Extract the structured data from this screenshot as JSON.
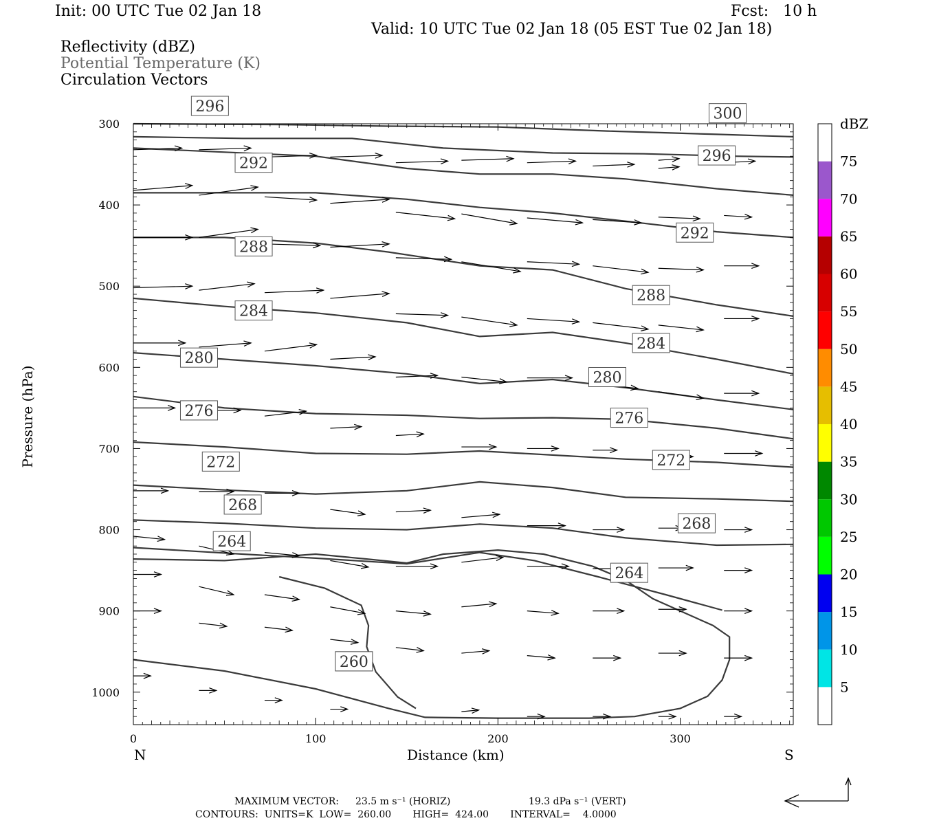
{
  "header": {
    "init": "Init: 00 UTC Tue 02 Jan 18",
    "fcst": "Fcst:   10 h",
    "valid": "Valid: 10 UTC Tue 02 Jan 18 (05 EST Tue 02 Jan 18)"
  },
  "legend_lines": {
    "reflectivity": "Reflectivity (dBZ)",
    "potential_temperature": "Potential Temperature (K)",
    "circulation": "Circulation Vectors"
  },
  "footer": {
    "max_vector_label": "MAXIMUM VECTOR:",
    "max_vector_horiz": "23.5 m s⁻¹ (HORIZ)",
    "max_vector_vert": "19.3 dPa s⁻¹ (VERT)",
    "contours": "CONTOURS:  UNITS=K  LOW=  260.00       HIGH=  424.00       INTERVAL=    4.0000"
  },
  "chart_data": {
    "type": "cross-section contour",
    "xlabel": "Distance (km)",
    "ylabel": "Pressure (hPa)",
    "xlim": [
      0,
      362
    ],
    "ylim": [
      1040,
      300
    ],
    "x_ticks": [
      "0",
      "100",
      "200",
      "300"
    ],
    "y_ticks": [
      "300",
      "400",
      "500",
      "600",
      "700",
      "800",
      "900",
      "1000"
    ],
    "x_end_left": "N",
    "x_end_right": "S",
    "colorbar": {
      "unit": "dBZ",
      "levels": [
        "5",
        "10",
        "15",
        "20",
        "25",
        "30",
        "35",
        "40",
        "45",
        "50",
        "55",
        "60",
        "65",
        "70",
        "75"
      ],
      "colors": [
        "#ffffff",
        "#00e5e5",
        "#0095e8",
        "#0000f0",
        "#00ff00",
        "#00c800",
        "#008800",
        "#ffff00",
        "#e6be00",
        "#ff8c00",
        "#ff0000",
        "#d70000",
        "#b50000",
        "#ff00ff",
        "#9b57cc",
        "#ffffff"
      ]
    },
    "theta_contours": [
      {
        "label": "260",
        "label_at": [
          121,
          962
        ],
        "points": [
          [
            0,
            960
          ],
          [
            50,
            974
          ],
          [
            100,
            996
          ],
          [
            140,
            1020
          ],
          [
            160,
            1031
          ],
          [
            200,
            1032
          ],
          [
            250,
            1032
          ],
          [
            275,
            1030
          ],
          [
            300,
            1020
          ],
          [
            315,
            1005
          ],
          [
            323,
            985
          ],
          [
            327,
            960
          ],
          [
            327,
            932
          ],
          [
            318,
            918
          ],
          [
            302,
            902
          ],
          [
            285,
            885
          ],
          [
            270,
            862
          ],
          [
            252,
            845
          ],
          [
            225,
            830
          ],
          [
            200,
            825
          ],
          [
            170,
            830
          ],
          [
            150,
            841
          ],
          [
            128,
            836
          ],
          [
            100,
            830
          ],
          [
            50,
            838
          ],
          [
            0,
            836
          ]
        ]
      },
      {
        "label": "260",
        "label_at": [
          121,
          962
        ],
        "points": [
          [
            80,
            858
          ],
          [
            105,
            872
          ],
          [
            125,
            893
          ],
          [
            129,
            918
          ],
          [
            128,
            944
          ],
          [
            133,
            975
          ],
          [
            145,
            1006
          ],
          [
            155,
            1020
          ]
        ]
      },
      {
        "label": "264",
        "label_at": [
          54,
          814
        ],
        "points": [
          [
            0,
            822
          ],
          [
            60,
            830
          ],
          [
            100,
            835
          ],
          [
            150,
            842
          ],
          [
            190,
            828
          ],
          [
            220,
            838
          ],
          [
            255,
            858
          ],
          [
            292,
            880
          ],
          [
            323,
            899
          ]
        ]
      },
      {
        "label": "264",
        "label_at": [
          272,
          853
        ],
        "points": []
      },
      {
        "label": "268",
        "label_at": [
          60,
          769
        ],
        "points": [
          [
            0,
            788
          ],
          [
            50,
            792
          ],
          [
            100,
            798
          ],
          [
            150,
            800
          ],
          [
            190,
            793
          ],
          [
            230,
            798
          ],
          [
            270,
            810
          ],
          [
            320,
            819
          ],
          [
            362,
            818
          ]
        ]
      },
      {
        "label": "268",
        "label_at": [
          309,
          792
        ],
        "points": []
      },
      {
        "label": "272",
        "label_at": [
          48,
          716
        ],
        "points": [
          [
            0,
            745
          ],
          [
            50,
            751
          ],
          [
            100,
            756
          ],
          [
            150,
            752
          ],
          [
            190,
            741
          ],
          [
            230,
            748
          ],
          [
            270,
            760
          ],
          [
            320,
            762
          ],
          [
            362,
            765
          ]
        ]
      },
      {
        "label": "272",
        "label_at": [
          295,
          714
        ],
        "points": []
      },
      {
        "label": "276",
        "label_at": [
          36,
          653
        ],
        "points": [
          [
            0,
            692
          ],
          [
            50,
            698
          ],
          [
            100,
            706
          ],
          [
            150,
            707
          ],
          [
            190,
            703
          ],
          [
            230,
            708
          ],
          [
            270,
            713
          ],
          [
            320,
            717
          ],
          [
            362,
            723
          ]
        ]
      },
      {
        "label": "276",
        "label_at": [
          272,
          662
        ],
        "points": []
      },
      {
        "label": "280",
        "label_at": [
          36,
          588
        ],
        "points": [
          [
            0,
            636
          ],
          [
            50,
            650
          ],
          [
            100,
            657
          ],
          [
            150,
            659
          ],
          [
            190,
            663
          ],
          [
            230,
            662
          ],
          [
            270,
            664
          ],
          [
            320,
            675
          ],
          [
            362,
            688
          ]
        ]
      },
      {
        "label": "280",
        "label_at": [
          260,
          612
        ],
        "points": []
      },
      {
        "label": "284",
        "label_at": [
          66,
          530
        ],
        "points": [
          [
            0,
            582
          ],
          [
            50,
            590
          ],
          [
            100,
            598
          ],
          [
            150,
            608
          ],
          [
            190,
            620
          ],
          [
            230,
            615
          ],
          [
            270,
            625
          ],
          [
            320,
            640
          ],
          [
            362,
            652
          ]
        ]
      },
      {
        "label": "284",
        "label_at": [
          284,
          570
        ],
        "points": []
      },
      {
        "label": "288",
        "label_at": [
          66,
          451
        ],
        "points": [
          [
            0,
            515
          ],
          [
            50,
            525
          ],
          [
            100,
            533
          ],
          [
            150,
            545
          ],
          [
            190,
            562
          ],
          [
            230,
            557
          ],
          [
            270,
            570
          ],
          [
            320,
            590
          ],
          [
            362,
            608
          ]
        ]
      },
      {
        "label": "288",
        "label_at": [
          284,
          511
        ],
        "points": []
      },
      {
        "label": "292",
        "label_at": [
          66,
          348
        ],
        "points": [
          [
            0,
            440
          ],
          [
            50,
            440
          ],
          [
            100,
            447
          ],
          [
            140,
            458
          ],
          [
            190,
            475
          ],
          [
            230,
            480
          ],
          [
            270,
            503
          ],
          [
            320,
            523
          ],
          [
            362,
            537
          ]
        ]
      },
      {
        "label": "292",
        "label_at": [
          308,
          434
        ],
        "points": []
      },
      {
        "label": "296",
        "label_at": [
          42,
          278
        ],
        "points": [
          [
            0,
            385
          ],
          [
            50,
            385
          ],
          [
            100,
            385
          ],
          [
            150,
            393
          ],
          [
            190,
            403
          ],
          [
            230,
            410
          ],
          [
            270,
            420
          ],
          [
            320,
            433
          ],
          [
            362,
            440
          ]
        ]
      },
      {
        "label": "296",
        "label_at": [
          320,
          339
        ],
        "points": []
      },
      {
        "label": "300",
        "label_at": [
          326,
          287
        ],
        "points": [
          [
            0,
            330
          ],
          [
            50,
            335
          ],
          [
            100,
            340
          ],
          [
            150,
            355
          ],
          [
            190,
            362
          ],
          [
            230,
            362
          ],
          [
            270,
            368
          ],
          [
            320,
            380
          ],
          [
            362,
            388
          ]
        ]
      },
      {
        "label": "",
        "label_at": null,
        "points": [
          [
            0,
            316
          ],
          [
            60,
            318
          ],
          [
            120,
            318
          ],
          [
            170,
            330
          ],
          [
            230,
            336
          ],
          [
            280,
            337
          ],
          [
            330,
            340
          ],
          [
            362,
            341
          ]
        ]
      },
      {
        "label": "",
        "label_at": null,
        "points": [
          [
            0,
            300
          ],
          [
            80,
            301
          ],
          [
            140,
            303
          ],
          [
            200,
            304
          ],
          [
            260,
            309
          ],
          [
            320,
            313
          ],
          [
            362,
            316
          ]
        ]
      }
    ],
    "vectors": [
      [
        0,
        332,
        28,
        -2
      ],
      [
        36,
        332,
        30,
        -2
      ],
      [
        72,
        341,
        30,
        -2
      ],
      [
        108,
        341,
        30,
        -2
      ],
      [
        144,
        348,
        30,
        -2
      ],
      [
        180,
        345,
        30,
        -2
      ],
      [
        216,
        348,
        28,
        -2
      ],
      [
        252,
        352,
        24,
        -2
      ],
      [
        288,
        345,
        12,
        -2
      ],
      [
        288,
        355,
        12,
        -2
      ],
      [
        324,
        348,
        18,
        -2
      ],
      [
        0,
        382,
        34,
        -6
      ],
      [
        36,
        388,
        34,
        -10
      ],
      [
        72,
        390,
        30,
        4
      ],
      [
        108,
        398,
        34,
        -5
      ],
      [
        144,
        409,
        34,
        8
      ],
      [
        180,
        411,
        32,
        12
      ],
      [
        216,
        416,
        32,
        6
      ],
      [
        252,
        418,
        28,
        4
      ],
      [
        288,
        415,
        24,
        2
      ],
      [
        324,
        413,
        16,
        2
      ],
      [
        0,
        440,
        34,
        0
      ],
      [
        36,
        440,
        34,
        -10
      ],
      [
        72,
        448,
        32,
        2
      ],
      [
        108,
        452,
        34,
        -4
      ],
      [
        144,
        465,
        32,
        2
      ],
      [
        180,
        470,
        34,
        12
      ],
      [
        216,
        470,
        30,
        3
      ],
      [
        252,
        475,
        32,
        8
      ],
      [
        288,
        478,
        26,
        2
      ],
      [
        324,
        475,
        20,
        0
      ],
      [
        0,
        502,
        34,
        -2
      ],
      [
        36,
        505,
        32,
        -8
      ],
      [
        72,
        508,
        34,
        -3
      ],
      [
        108,
        515,
        34,
        -6
      ],
      [
        144,
        534,
        30,
        2
      ],
      [
        180,
        538,
        32,
        10
      ],
      [
        216,
        540,
        30,
        4
      ],
      [
        252,
        545,
        32,
        8
      ],
      [
        288,
        548,
        26,
        6
      ],
      [
        324,
        540,
        20,
        0
      ],
      [
        0,
        570,
        30,
        0
      ],
      [
        36,
        575,
        30,
        -5
      ],
      [
        72,
        580,
        30,
        -8
      ],
      [
        108,
        590,
        26,
        -3
      ],
      [
        144,
        612,
        24,
        -2
      ],
      [
        180,
        612,
        26,
        6
      ],
      [
        216,
        613,
        26,
        0
      ],
      [
        252,
        620,
        26,
        6
      ],
      [
        288,
        630,
        26,
        8
      ],
      [
        324,
        632,
        20,
        0
      ],
      [
        0,
        650,
        24,
        0
      ],
      [
        36,
        653,
        24,
        0
      ],
      [
        72,
        660,
        24,
        -6
      ],
      [
        108,
        675,
        18,
        -2
      ],
      [
        144,
        684,
        16,
        -2
      ],
      [
        180,
        698,
        20,
        0
      ],
      [
        216,
        700,
        18,
        0
      ],
      [
        252,
        702,
        14,
        0
      ],
      [
        288,
        708,
        20,
        2
      ],
      [
        324,
        706,
        22,
        0
      ],
      [
        0,
        752,
        20,
        0
      ],
      [
        36,
        753,
        20,
        0
      ],
      [
        72,
        755,
        20,
        0
      ],
      [
        108,
        775,
        20,
        6
      ],
      [
        144,
        778,
        20,
        -2
      ],
      [
        180,
        785,
        22,
        -4
      ],
      [
        216,
        795,
        22,
        0
      ],
      [
        252,
        800,
        18,
        0
      ],
      [
        288,
        798,
        14,
        0
      ],
      [
        324,
        800,
        16,
        0
      ],
      [
        0,
        808,
        18,
        4
      ],
      [
        36,
        820,
        20,
        10
      ],
      [
        72,
        828,
        20,
        4
      ],
      [
        108,
        838,
        22,
        8
      ],
      [
        144,
        845,
        24,
        0
      ],
      [
        180,
        840,
        24,
        -6
      ],
      [
        216,
        845,
        24,
        0
      ],
      [
        252,
        848,
        22,
        0
      ],
      [
        288,
        847,
        20,
        0
      ],
      [
        324,
        850,
        16,
        0
      ],
      [
        0,
        855,
        16,
        0
      ],
      [
        36,
        870,
        20,
        10
      ],
      [
        72,
        880,
        20,
        6
      ],
      [
        108,
        895,
        20,
        8
      ],
      [
        144,
        900,
        20,
        4
      ],
      [
        180,
        895,
        20,
        -4
      ],
      [
        216,
        900,
        18,
        3
      ],
      [
        252,
        900,
        18,
        0
      ],
      [
        288,
        898,
        16,
        0
      ],
      [
        324,
        900,
        16,
        0
      ],
      [
        0,
        900,
        16,
        0
      ],
      [
        36,
        915,
        16,
        4
      ],
      [
        72,
        920,
        16,
        4
      ],
      [
        108,
        935,
        16,
        4
      ],
      [
        144,
        945,
        16,
        4
      ],
      [
        180,
        952,
        16,
        -3
      ],
      [
        216,
        955,
        16,
        3
      ],
      [
        252,
        958,
        16,
        0
      ],
      [
        288,
        952,
        16,
        0
      ],
      [
        324,
        958,
        16,
        0
      ],
      [
        0,
        980,
        10,
        0
      ],
      [
        36,
        998,
        10,
        0
      ],
      [
        72,
        1010,
        10,
        0
      ],
      [
        108,
        1021,
        10,
        0
      ],
      [
        180,
        1024,
        10,
        -2
      ],
      [
        216,
        1030,
        10,
        0
      ],
      [
        252,
        1030,
        10,
        0
      ],
      [
        288,
        1030,
        10,
        0
      ],
      [
        324,
        1030,
        10,
        0
      ]
    ]
  }
}
